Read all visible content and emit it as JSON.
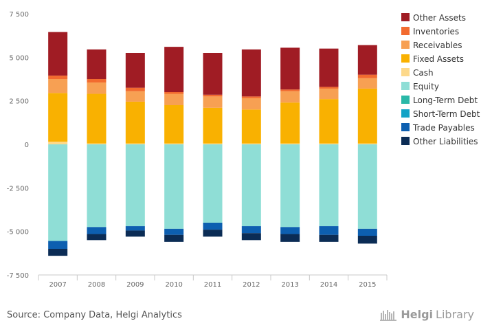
{
  "chart_data": {
    "type": "bar",
    "stacked": true,
    "categories": [
      "2007",
      "2008",
      "2009",
      "2010",
      "2011",
      "2012",
      "2013",
      "2014",
      "2015"
    ],
    "ylim": [
      -7500,
      7500
    ],
    "yticks": [
      -7500,
      -5000,
      -2500,
      0,
      2500,
      5000,
      7500
    ],
    "ytick_labels": [
      "-7 500",
      "-5 000",
      "-2 500",
      "0",
      "2 500",
      "5 000",
      "7 500"
    ],
    "legend_position": "right",
    "grid": false,
    "series": [
      {
        "name": "Other Assets",
        "color": "#a01c24",
        "values": [
          2500,
          1700,
          2000,
          2600,
          2400,
          2700,
          2400,
          2200,
          1700
        ]
      },
      {
        "name": "Inventories",
        "color": "#f26b2f",
        "values": [
          200,
          200,
          200,
          100,
          100,
          100,
          100,
          100,
          200
        ]
      },
      {
        "name": "Receivables",
        "color": "#f7a053",
        "values": [
          800,
          650,
          600,
          650,
          650,
          650,
          650,
          600,
          600
        ]
      },
      {
        "name": "Fixed Assets",
        "color": "#f9b101",
        "values": [
          2800,
          2850,
          2400,
          2200,
          2050,
          1950,
          2350,
          2550,
          3150
        ]
      },
      {
        "name": "Cash",
        "color": "#fdd98b",
        "values": [
          150,
          50,
          50,
          50,
          50,
          50,
          50,
          50,
          50
        ]
      },
      {
        "name": "Equity",
        "color": "#8fded6",
        "values": [
          -5550,
          -4750,
          -4700,
          -4850,
          -4500,
          -4700,
          -4750,
          -4700,
          -4850
        ]
      },
      {
        "name": "Long-Term Debt",
        "color": "#2ab8a8",
        "values": [
          0,
          0,
          0,
          0,
          0,
          0,
          0,
          0,
          0
        ]
      },
      {
        "name": "Short-Term Debt",
        "color": "#13a3c6",
        "values": [
          0,
          0,
          0,
          0,
          0,
          0,
          0,
          0,
          0
        ]
      },
      {
        "name": "Trade Payables",
        "color": "#0d5fb0",
        "values": [
          -450,
          -400,
          -250,
          -350,
          -400,
          -400,
          -400,
          -500,
          -400
        ]
      },
      {
        "name": "Other Liabilities",
        "color": "#0b2c55",
        "values": [
          -400,
          -350,
          -350,
          -400,
          -400,
          -400,
          -450,
          -400,
          -450
        ]
      }
    ]
  },
  "footer": {
    "source": "Source: Company Data, Helgi Analytics",
    "logo_helgi": "Helgi",
    "logo_library": "Library"
  },
  "logo_icon": "bookshelf-icon"
}
